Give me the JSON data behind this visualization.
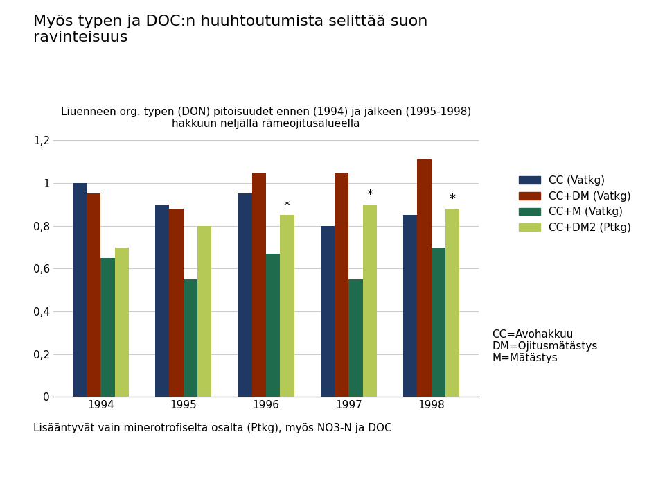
{
  "title": "Myös typen ja DOC:n huuhtoutumista selittää suon\nravinteisuus",
  "subtitle": "Liuenneen org. typen (DON) pitoisuudet ennen (1994) ja jälkeen (1995-1998)\nhakkuun neljällä rämeojitusalueella",
  "categories": [
    "1994",
    "1995",
    "1996",
    "1997",
    "1998"
  ],
  "series_values": [
    [
      1.0,
      0.9,
      0.95,
      0.8,
      0.85
    ],
    [
      0.95,
      0.88,
      1.05,
      1.05,
      1.11
    ],
    [
      0.65,
      0.55,
      0.67,
      0.55,
      0.7
    ],
    [
      0.7,
      0.8,
      0.85,
      0.9,
      0.88
    ]
  ],
  "legend_labels": [
    "CC (Vatkg)",
    "CC+DM (Vatkg)",
    "CC+M (Vatkg)",
    "CC+DM2 (Ptkg)"
  ],
  "colors": [
    "#1F3864",
    "#8B2500",
    "#1F6B4E",
    "#B5C957"
  ],
  "ylim": [
    0,
    1.2
  ],
  "yticks": [
    0,
    0.2,
    0.4,
    0.6,
    0.8,
    1.0,
    1.2
  ],
  "ytick_labels": [
    "0",
    "0,2",
    "0,4",
    "0,6",
    "0,8",
    "1",
    "1,2"
  ],
  "star_year_indices": [
    2,
    3,
    4
  ],
  "star_bar_series_index": 3,
  "footnote_legend": "CC=Avohakkuu\nDM=Ojitusmätästys\nM=Mätästys",
  "footnote_bottom": "Lisääntyvät vain minerotrofiselta osalta (Ptkg), myös NO3-N ja DOC",
  "background_color": "#FFFFFF",
  "grid_color": "#CCCCCC",
  "bar_width": 0.17,
  "title_fontsize": 16,
  "subtitle_fontsize": 11,
  "tick_fontsize": 11,
  "legend_fontsize": 11,
  "footnote_fontsize": 11
}
